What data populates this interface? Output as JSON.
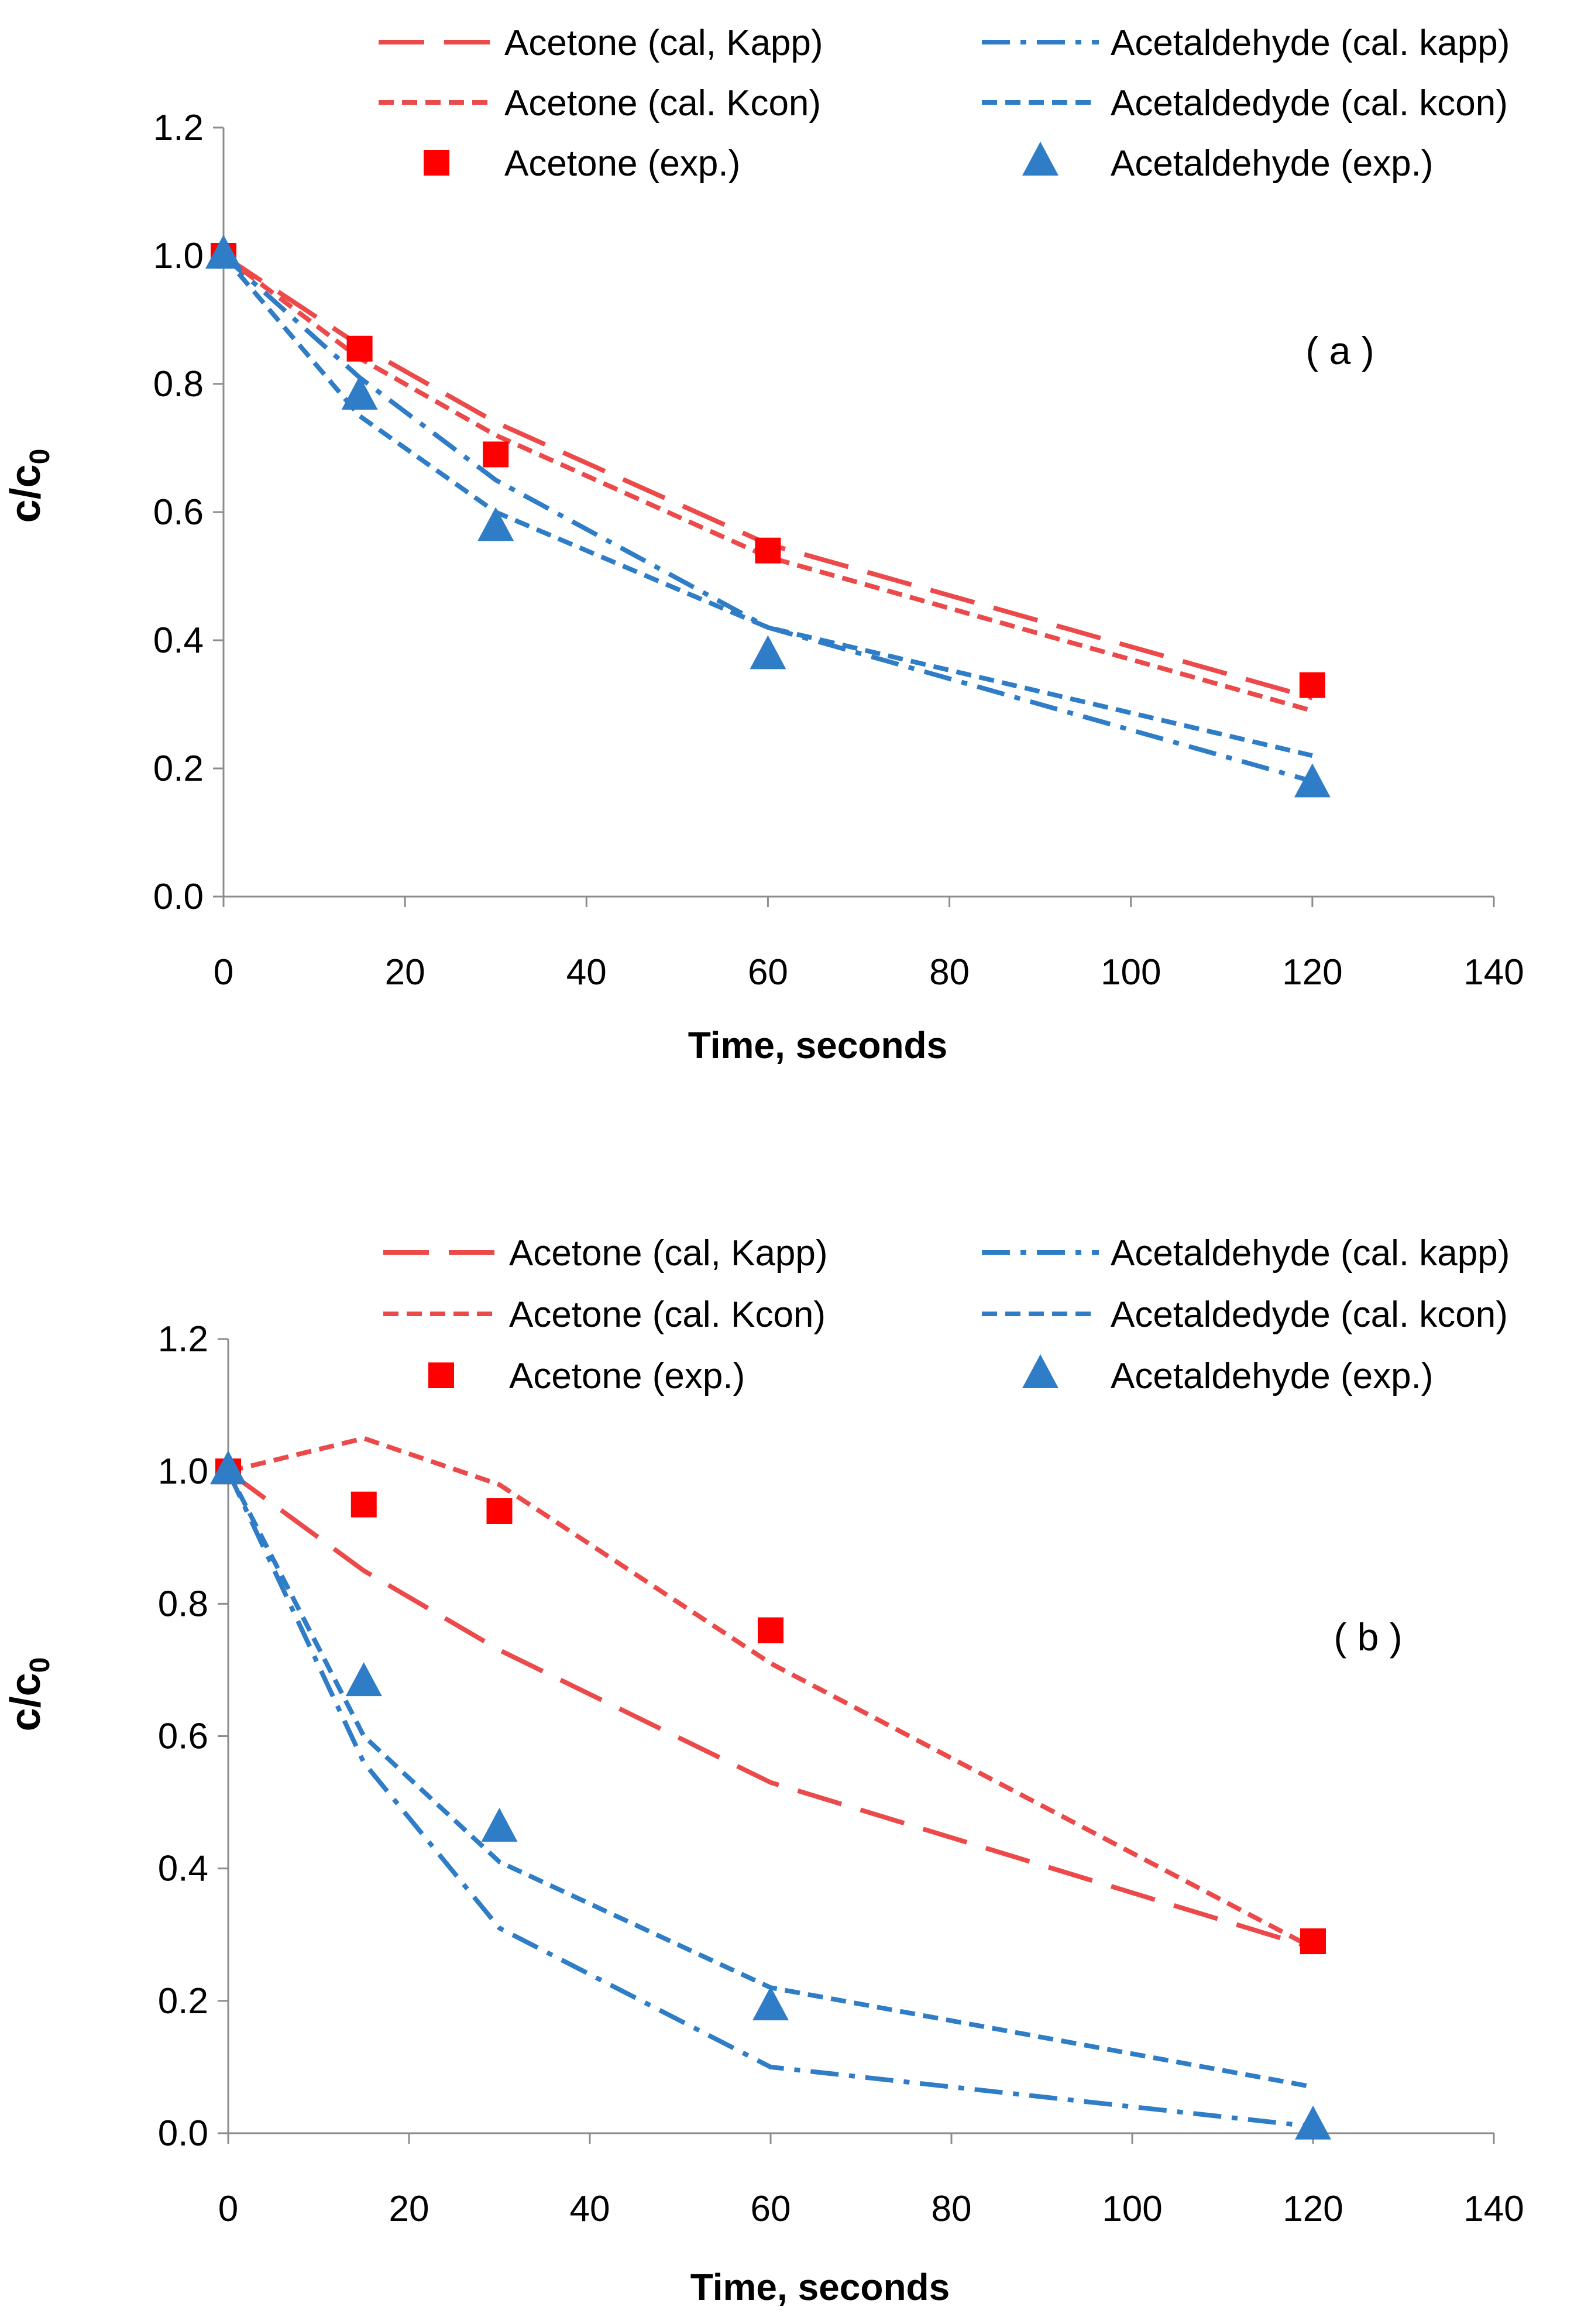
{
  "colors": {
    "acetone": "#ec4a4a",
    "acetaldehyde": "#2f7dc6",
    "acetone_marker": "#ff0000",
    "acetaldehyde_marker": "#2f7dc6",
    "axis": "#8c8c8c"
  },
  "chart_data": [
    {
      "type": "line",
      "panel_label": "( a )",
      "xlabel": "Time, seconds",
      "ylabel": "c/c",
      "ylabel_sub": "0",
      "xlim": [
        0,
        140
      ],
      "ylim": [
        0,
        1.2
      ],
      "xticks": [
        0,
        20,
        40,
        60,
        80,
        100,
        120,
        140
      ],
      "yticks": [
        "0.0",
        "0.2",
        "0.4",
        "0.6",
        "0.8",
        "1.0",
        "1.2"
      ],
      "legend_position": "top",
      "series": [
        {
          "name": "Acetone (cal, Kapp)",
          "style": "long-dash",
          "color_key": "acetone",
          "x": [
            0,
            15,
            30,
            60,
            120
          ],
          "y": [
            1.0,
            0.86,
            0.74,
            0.55,
            0.31
          ]
        },
        {
          "name": "Acetaldehyde (cal. kapp)",
          "style": "dash-dot",
          "color_key": "acetaldehyde",
          "x": [
            0,
            15,
            30,
            60,
            120
          ],
          "y": [
            1.0,
            0.81,
            0.65,
            0.42,
            0.18
          ]
        },
        {
          "name": "Acetone (cal. Kcon)",
          "style": "short-dash",
          "color_key": "acetone",
          "x": [
            0,
            15,
            30,
            60,
            120
          ],
          "y": [
            1.0,
            0.84,
            0.72,
            0.53,
            0.29
          ]
        },
        {
          "name": "Acetaldedyde (cal. kcon)",
          "style": "short-dash",
          "color_key": "acetaldehyde",
          "x": [
            0,
            15,
            30,
            60,
            120
          ],
          "y": [
            1.0,
            0.75,
            0.6,
            0.42,
            0.22
          ]
        },
        {
          "name": "Acetone (exp.)",
          "style": "square",
          "color_key": "acetone_marker",
          "x": [
            0,
            15,
            30,
            60,
            120
          ],
          "y": [
            1.0,
            0.855,
            0.69,
            0.54,
            0.33
          ]
        },
        {
          "name": "Acetaldehyde (exp.)",
          "style": "triangle",
          "color_key": "acetaldehyde_marker",
          "x": [
            0,
            15,
            30,
            60,
            120
          ],
          "y": [
            1.0,
            0.78,
            0.575,
            0.375,
            0.175
          ]
        }
      ]
    },
    {
      "type": "line",
      "panel_label": "( b )",
      "xlabel": "Time, seconds",
      "ylabel": "c/c",
      "ylabel_sub": "0",
      "xlim": [
        0,
        140
      ],
      "ylim": [
        0,
        1.2
      ],
      "xticks": [
        0,
        20,
        40,
        60,
        80,
        100,
        120,
        140
      ],
      "yticks": [
        "0.0",
        "0.2",
        "0.4",
        "0.6",
        "0.8",
        "1.0",
        "1.2"
      ],
      "legend_position": "top",
      "series": [
        {
          "name": "Acetone (cal, Kapp)",
          "style": "long-dash",
          "color_key": "acetone",
          "x": [
            0,
            15,
            30,
            60,
            120
          ],
          "y": [
            1.0,
            0.85,
            0.73,
            0.53,
            0.28
          ]
        },
        {
          "name": "Acetaldehyde (cal. kapp)",
          "style": "dash-dot",
          "color_key": "acetaldehyde",
          "x": [
            0,
            15,
            30,
            60,
            120
          ],
          "y": [
            1.0,
            0.56,
            0.31,
            0.1,
            0.01
          ]
        },
        {
          "name": "Acetone (cal. Kcon)",
          "style": "short-dash",
          "color_key": "acetone",
          "x": [
            0,
            15,
            30,
            60,
            120
          ],
          "y": [
            1.0,
            1.05,
            0.98,
            0.71,
            0.28
          ]
        },
        {
          "name": "Acetaldedyde (cal. kcon)",
          "style": "short-dash",
          "color_key": "acetaldehyde",
          "x": [
            0,
            15,
            30,
            60,
            120
          ],
          "y": [
            1.0,
            0.6,
            0.41,
            0.22,
            0.07
          ]
        },
        {
          "name": "Acetone (exp.)",
          "style": "square",
          "color_key": "acetone_marker",
          "x": [
            0,
            15,
            30,
            60,
            120
          ],
          "y": [
            1.0,
            0.95,
            0.94,
            0.76,
            0.29
          ]
        },
        {
          "name": "Acetaldehyde (exp.)",
          "style": "triangle",
          "color_key": "acetaldehyde_marker",
          "x": [
            0,
            15,
            30,
            60,
            120
          ],
          "y": [
            1.0,
            0.68,
            0.46,
            0.19,
            0.01
          ]
        }
      ]
    }
  ]
}
